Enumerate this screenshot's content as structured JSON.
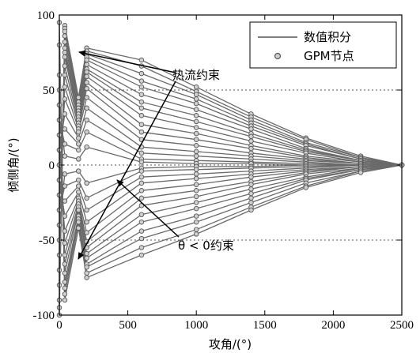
{
  "chart_data": {
    "type": "line",
    "xlabel": "攻角/(°)",
    "ylabel": "倾侧角/(°)",
    "xlim": [
      0,
      2500
    ],
    "ylim": [
      -100,
      100
    ],
    "xticks": [
      0,
      500,
      1000,
      1500,
      2000,
      2500
    ],
    "yticks": [
      -100,
      -50,
      0,
      50,
      100
    ],
    "reference_lines": [
      50,
      0,
      -50
    ],
    "legend": {
      "placement": "top-right",
      "entries": [
        {
          "label": "数值积分",
          "style": "line"
        },
        {
          "label": "GPM节点",
          "style": "circle-marker"
        }
      ]
    },
    "annotations": [
      {
        "text": "热流约束",
        "targets": [
          [
            150,
            72
          ],
          [
            160,
            -68
          ]
        ]
      },
      {
        "text": "θ < 0约束",
        "targets": [
          [
            480,
            0
          ]
        ]
      }
    ],
    "series": [
      {
        "x": [
          0,
          40,
          140,
          200,
          600,
          1000,
          1400,
          1800,
          2200,
          2500
        ],
        "y": [
          -100,
          93,
          45,
          78,
          70,
          52,
          34,
          18,
          6,
          0
        ]
      },
      {
        "x": [
          0,
          40,
          140,
          200,
          600,
          1000,
          1400,
          1800,
          2200,
          2500
        ],
        "y": [
          -95,
          91,
          42,
          76,
          66,
          49,
          32,
          17,
          5,
          0
        ]
      },
      {
        "x": [
          0,
          40,
          140,
          200,
          600,
          1000,
          1400,
          1800,
          2200,
          2500
        ],
        "y": [
          -90,
          89,
          40,
          74,
          61,
          47,
          30,
          15,
          5,
          0
        ]
      },
      {
        "x": [
          0,
          40,
          140,
          200,
          600,
          1000,
          1400,
          1800,
          2200,
          2500
        ],
        "y": [
          -80,
          86,
          38,
          72,
          56,
          44,
          28,
          14,
          4,
          0
        ]
      },
      {
        "x": [
          0,
          40,
          140,
          200,
          600,
          1000,
          1400,
          1800,
          2200,
          2500
        ],
        "y": [
          -70,
          82,
          36,
          70,
          52,
          41,
          26,
          13,
          4,
          0
        ]
      },
      {
        "x": [
          0,
          40,
          140,
          200,
          600,
          1000,
          1400,
          1800,
          2200,
          2500
        ],
        "y": [
          -60,
          78,
          34,
          67,
          47,
          37,
          24,
          11,
          3,
          0
        ]
      },
      {
        "x": [
          0,
          40,
          140,
          200,
          600,
          1000,
          1400,
          1800,
          2200,
          2500
        ],
        "y": [
          -50,
          75,
          32,
          64,
          42,
          33,
          21,
          10,
          3,
          0
        ]
      },
      {
        "x": [
          0,
          40,
          140,
          200,
          600,
          1000,
          1400,
          1800,
          2200,
          2500
        ],
        "y": [
          -40,
          72,
          30,
          62,
          38,
          29,
          19,
          9,
          3,
          0
        ]
      },
      {
        "x": [
          0,
          40,
          140,
          200,
          600,
          1000,
          1400,
          1800,
          2200,
          2500
        ],
        "y": [
          -30,
          66,
          28,
          59,
          33,
          25,
          16,
          8,
          2,
          0
        ]
      },
      {
        "x": [
          0,
          40,
          140,
          200,
          600,
          1000,
          1400,
          1800,
          2200,
          2500
        ],
        "y": [
          -20,
          60,
          26,
          55,
          27,
          21,
          13,
          6,
          2,
          0
        ]
      },
      {
        "x": [
          0,
          40,
          140,
          200,
          600,
          1000,
          1400,
          1800,
          2200,
          2500
        ],
        "y": [
          -10,
          52,
          24,
          51,
          22,
          17,
          11,
          5,
          1,
          0
        ]
      },
      {
        "x": [
          0,
          40,
          140,
          200,
          600,
          1000,
          1400,
          1800,
          2200,
          2500
        ],
        "y": [
          0,
          44,
          22,
          45,
          17,
          13,
          8,
          4,
          1,
          0
        ]
      },
      {
        "x": [
          0,
          40,
          140,
          200,
          600,
          1000,
          1400,
          1800,
          2200,
          2500
        ],
        "y": [
          10,
          34,
          18,
          38,
          12,
          9,
          6,
          3,
          1,
          0
        ]
      },
      {
        "x": [
          0,
          40,
          140,
          200,
          600,
          1000,
          1400,
          1800,
          2200,
          2500
        ],
        "y": [
          20,
          24,
          14,
          30,
          8,
          6,
          4,
          2,
          0,
          0
        ]
      },
      {
        "x": [
          0,
          40,
          140,
          200,
          600,
          1000,
          1400,
          1800,
          2200,
          2500
        ],
        "y": [
          30,
          14,
          10,
          22,
          4,
          3,
          2,
          1,
          0,
          0
        ]
      },
      {
        "x": [
          0,
          40,
          140,
          200,
          600,
          1000,
          1400,
          1800,
          2200,
          2500
        ],
        "y": [
          40,
          6,
          4,
          12,
          2,
          1,
          1,
          0,
          0,
          0
        ]
      },
      {
        "x": [
          0,
          40,
          140,
          200,
          600,
          1000,
          1400,
          1800,
          2200,
          2500
        ],
        "y": [
          -40,
          -6,
          -4,
          -12,
          -2,
          -1,
          -1,
          0,
          0,
          0
        ]
      },
      {
        "x": [
          0,
          40,
          140,
          200,
          600,
          1000,
          1400,
          1800,
          2200,
          2500
        ],
        "y": [
          -30,
          -14,
          -10,
          -22,
          -4,
          -3,
          -2,
          -1,
          0,
          0
        ]
      },
      {
        "x": [
          0,
          40,
          140,
          200,
          600,
          1000,
          1400,
          1800,
          2200,
          2500
        ],
        "y": [
          -20,
          -24,
          -14,
          -30,
          -8,
          -6,
          -4,
          -2,
          0,
          0
        ]
      },
      {
        "x": [
          0,
          40,
          140,
          200,
          600,
          1000,
          1400,
          1800,
          2200,
          2500
        ],
        "y": [
          -10,
          -34,
          -18,
          -38,
          -12,
          -9,
          -6,
          -3,
          -1,
          0
        ]
      },
      {
        "x": [
          0,
          40,
          140,
          200,
          600,
          1000,
          1400,
          1800,
          2200,
          2500
        ],
        "y": [
          0,
          -44,
          -22,
          -45,
          -17,
          -13,
          -8,
          -4,
          -1,
          0
        ]
      },
      {
        "x": [
          0,
          40,
          140,
          200,
          600,
          1000,
          1400,
          1800,
          2200,
          2500
        ],
        "y": [
          10,
          -52,
          -24,
          -51,
          -22,
          -17,
          -11,
          -5,
          -1,
          0
        ]
      },
      {
        "x": [
          0,
          40,
          140,
          200,
          600,
          1000,
          1400,
          1800,
          2200,
          2500
        ],
        "y": [
          20,
          -60,
          -26,
          -55,
          -27,
          -21,
          -13,
          -6,
          -2,
          0
        ]
      },
      {
        "x": [
          0,
          40,
          140,
          200,
          600,
          1000,
          1400,
          1800,
          2200,
          2500
        ],
        "y": [
          30,
          -66,
          -28,
          -59,
          -33,
          -25,
          -16,
          -8,
          -2,
          0
        ]
      },
      {
        "x": [
          0,
          40,
          140,
          200,
          600,
          1000,
          1400,
          1800,
          2200,
          2500
        ],
        "y": [
          40,
          -72,
          -30,
          -62,
          -38,
          -29,
          -19,
          -9,
          -3,
          0
        ]
      },
      {
        "x": [
          0,
          40,
          140,
          200,
          600,
          1000,
          1400,
          1800,
          2200,
          2500
        ],
        "y": [
          50,
          -78,
          -34,
          -66,
          -44,
          -34,
          -22,
          -10,
          -3,
          0
        ]
      },
      {
        "x": [
          0,
          40,
          140,
          200,
          600,
          1000,
          1400,
          1800,
          2200,
          2500
        ],
        "y": [
          60,
          -82,
          -36,
          -68,
          -49,
          -38,
          -25,
          -12,
          -4,
          0
        ]
      },
      {
        "x": [
          0,
          40,
          140,
          200,
          600,
          1000,
          1400,
          1800,
          2200,
          2500
        ],
        "y": [
          80,
          -86,
          -38,
          -72,
          -55,
          -43,
          -28,
          -14,
          -4,
          0
        ]
      },
      {
        "x": [
          0,
          40,
          140,
          200,
          600,
          1000,
          1400,
          1800,
          2200,
          2500
        ],
        "y": [
          95,
          -90,
          -42,
          -75,
          -60,
          -46,
          -30,
          -15,
          -5,
          0
        ]
      }
    ]
  }
}
